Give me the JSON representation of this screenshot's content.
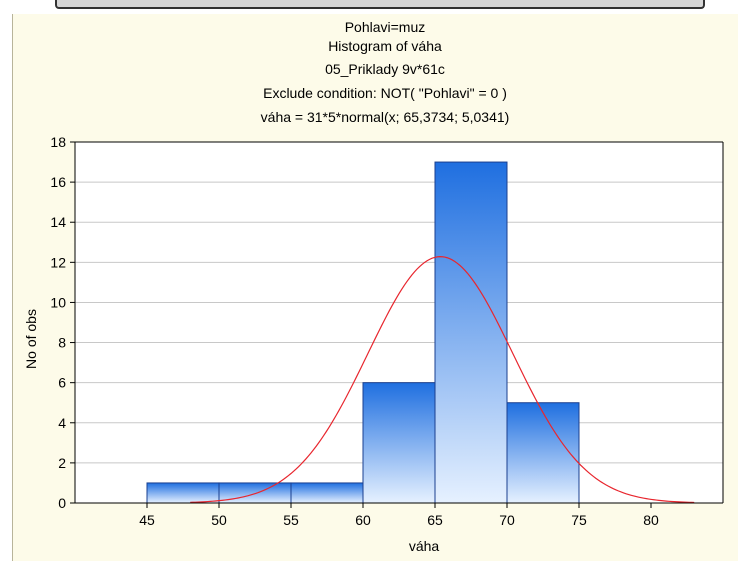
{
  "chart_data": {
    "type": "bar",
    "titles": [
      "Pohlavi=muz",
      "Histogram of váha",
      "05_Priklady 9v*61c",
      "Exclude condition: NOT( \"Pohlavi\" = 0 )",
      "váha = 31*5*normal(x; 65,3734; 5,0341)"
    ],
    "xlabel": "váha",
    "ylabel": "No of obs",
    "xlim": [
      40,
      85
    ],
    "ylim": [
      0,
      18
    ],
    "x_ticks": [
      45,
      50,
      55,
      60,
      65,
      70,
      75,
      80
    ],
    "y_ticks": [
      0,
      2,
      4,
      6,
      8,
      10,
      12,
      14,
      16,
      18
    ],
    "bins": [
      {
        "from": 45,
        "to": 50,
        "count": 1
      },
      {
        "from": 50,
        "to": 55,
        "count": 1
      },
      {
        "from": 55,
        "to": 60,
        "count": 1
      },
      {
        "from": 60,
        "to": 65,
        "count": 6
      },
      {
        "from": 65,
        "to": 70,
        "count": 17
      },
      {
        "from": 70,
        "to": 75,
        "count": 5
      }
    ],
    "normal_fit": {
      "n": 31,
      "bin_width": 5,
      "mean": 65.3734,
      "sd": 5.0341,
      "x_range": [
        48,
        83
      ]
    },
    "grid": true,
    "colors": {
      "bar_top": "#1f6fe0",
      "bar_bottom": "#e6f1ff",
      "bar_edge": "#1a3f8f",
      "curve": "#e8262e",
      "grid": "#c8c8c8",
      "panel": "#fdfbe9",
      "plot": "#ffffff"
    }
  }
}
